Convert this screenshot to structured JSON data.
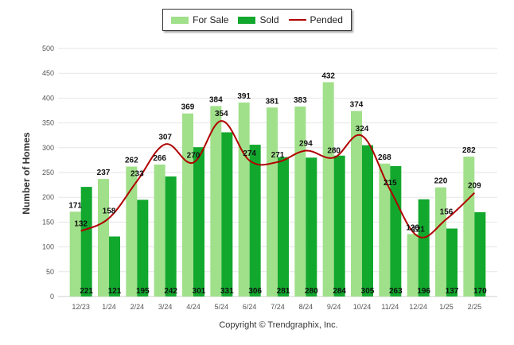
{
  "legend": {
    "for_sale": "For Sale",
    "sold": "Sold",
    "pended": "Pended"
  },
  "colors": {
    "for_sale": "#a0e08a",
    "sold": "#12a82e",
    "pended": "#b00000",
    "grid": "#e6e6e6",
    "axis_text": "#555555"
  },
  "footer": "Copyright © Trendgraphix, Inc.",
  "chart_data": {
    "type": "bar",
    "title": "",
    "xlabel": "",
    "ylabel": "Number of Homes",
    "ylim": [
      0,
      500
    ],
    "yticks": [
      0,
      50,
      100,
      150,
      200,
      250,
      300,
      350,
      400,
      450,
      500
    ],
    "grid": true,
    "legend_position": "top-center",
    "categories": [
      "12/23",
      "1/24",
      "2/24",
      "3/24",
      "4/24",
      "5/24",
      "6/24",
      "7/24",
      "8/24",
      "9/24",
      "10/24",
      "11/24",
      "12/24",
      "1/25",
      "2/25"
    ],
    "series": [
      {
        "name": "For Sale",
        "type": "bar",
        "values": [
          171,
          237,
          262,
          266,
          369,
          384,
          391,
          381,
          383,
          432,
          374,
          268,
          126,
          220,
          282
        ]
      },
      {
        "name": "Sold",
        "type": "bar",
        "values": [
          221,
          121,
          195,
          242,
          301,
          331,
          306,
          281,
          280,
          284,
          305,
          263,
          196,
          137,
          170
        ]
      },
      {
        "name": "Pended",
        "type": "line",
        "values": [
          132,
          158,
          233,
          307,
          270,
          354,
          274,
          271,
          294,
          280,
          324,
          215,
          121,
          156,
          209
        ]
      }
    ]
  }
}
